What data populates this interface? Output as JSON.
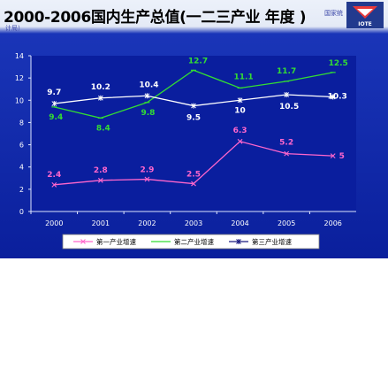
{
  "header": {
    "title": "2000-2006国内生产总值(一二三产业 年度 )",
    "source_note_a": "国家统",
    "source_note_b": "计局)",
    "logo_text": "IOTE"
  },
  "colors": {
    "primary": "#ff66cc",
    "secondary": "#33dd33",
    "tertiary": "#ffffff",
    "plot_bg": "#0a1e9e",
    "legend_bg": "#ffffff"
  },
  "chart_data": {
    "type": "line",
    "categories": [
      "2000",
      "2001",
      "2002",
      "2003",
      "2004",
      "2005",
      "2006"
    ],
    "ylim": [
      0,
      14
    ],
    "yticks": [
      "0",
      "2",
      "4",
      "6",
      "8",
      "10",
      "12",
      "14"
    ],
    "grid": false,
    "legend_position": "bottom",
    "series": [
      {
        "name": "第一产业增速",
        "color": "#ff66cc",
        "values": [
          2.4,
          2.8,
          2.9,
          2.5,
          6.3,
          5.2,
          5
        ],
        "labels": [
          "2.4",
          "2.8",
          "2.9",
          "2.5",
          "6.3",
          "5.2",
          "5"
        ]
      },
      {
        "name": "第二产业增速",
        "color": "#33dd33",
        "values": [
          9.4,
          8.4,
          9.8,
          12.7,
          11.1,
          11.7,
          12.5
        ],
        "labels": [
          "9.4",
          "8.4",
          "9.8",
          "12.7",
          "11.1",
          "11.7",
          "12.5"
        ]
      },
      {
        "name": "第三产业增速",
        "color": "#ffffff",
        "values": [
          9.7,
          10.2,
          10.4,
          9.5,
          10,
          10.5,
          10.3
        ],
        "labels": [
          "9.7",
          "10.2",
          "10.4",
          "9.5",
          "10",
          "10.5",
          "10.3"
        ]
      }
    ]
  }
}
